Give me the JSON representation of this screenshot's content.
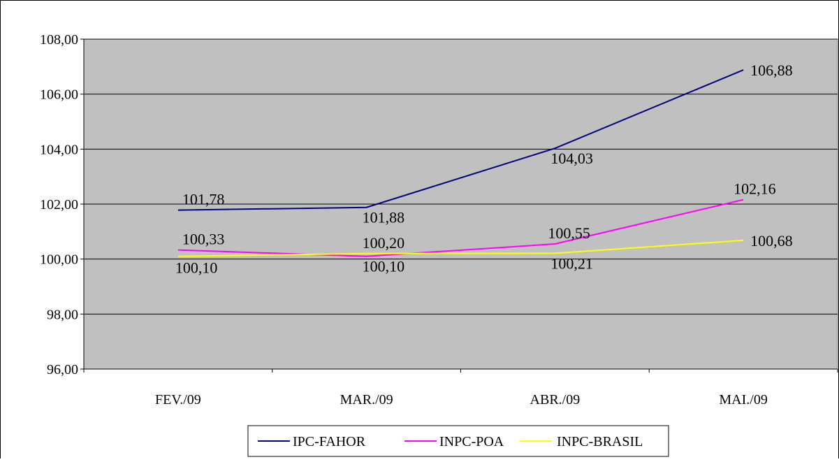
{
  "chart_data": {
    "type": "line",
    "title": "",
    "xlabel": "",
    "ylabel": "",
    "categories": [
      "FEV./09",
      "MAR./09",
      "ABR./09",
      "MAI./09"
    ],
    "ylim": [
      96,
      108
    ],
    "yticks": [
      "96,00",
      "98,00",
      "100,00",
      "102,00",
      "104,00",
      "106,00",
      "108,00"
    ],
    "grid": true,
    "legend": "bottom-center",
    "plot_background": "#c0c0c0",
    "series": [
      {
        "name": "IPC-FAHOR",
        "color": "#000080",
        "values": [
          101.78,
          101.88,
          104.03,
          106.88
        ],
        "labels": [
          "101,78",
          "101,88",
          "104,03",
          "106,88"
        ]
      },
      {
        "name": "INPC-POA",
        "color": "#ff00ff",
        "values": [
          100.33,
          100.1,
          100.55,
          102.16
        ],
        "labels": [
          "100,33",
          "100,10",
          "100,55",
          "102,16"
        ]
      },
      {
        "name": "INPC-BRASIL",
        "color": "#ffff00",
        "values": [
          100.1,
          100.2,
          100.21,
          100.68
        ],
        "labels": [
          "100,10",
          "100,20",
          "100,21",
          "100,68"
        ]
      }
    ]
  }
}
